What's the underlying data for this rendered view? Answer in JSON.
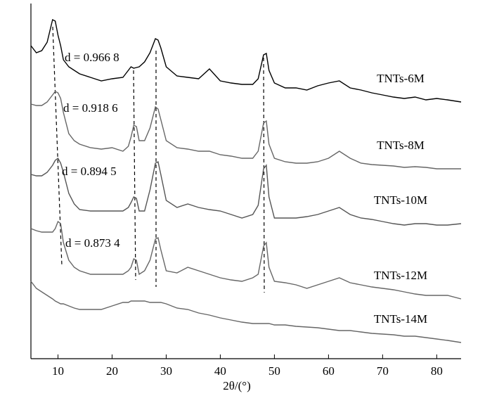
{
  "chart_data": {
    "type": "line",
    "x_label": "2θ/(°)",
    "x": [
      5,
      6,
      7,
      8,
      9,
      9.5,
      10,
      10.5,
      11,
      12,
      13,
      14,
      16,
      18,
      20,
      22,
      23,
      23.5,
      24,
      24.5,
      25,
      26,
      27,
      28,
      28.5,
      29,
      30,
      32,
      34,
      36,
      38,
      40,
      42,
      44,
      46,
      47,
      48,
      48.5,
      49,
      50,
      52,
      54,
      56,
      58,
      60,
      62,
      64,
      66,
      68,
      70,
      72,
      74,
      76,
      78,
      80,
      82,
      84.5
    ],
    "series": [
      {
        "name": "TNTs-6M",
        "color": "#000000",
        "values": [
          445,
          435,
          438,
          450,
          482,
          480,
          460,
          445,
          425,
          415,
          410,
          405,
          400,
          395,
          398,
          400,
          410,
          415,
          413,
          414,
          415,
          422,
          435,
          455,
          453,
          442,
          415,
          402,
          400,
          398,
          412,
          395,
          392,
          390,
          390,
          398,
          432,
          434,
          410,
          392,
          385,
          385,
          382,
          388,
          392,
          395,
          385,
          382,
          378,
          375,
          372,
          370,
          372,
          368,
          370,
          368,
          365
        ]
      },
      {
        "name": "TNTs-8M",
        "color": "#666666",
        "values": [
          362,
          360,
          360,
          365,
          375,
          380,
          378,
          370,
          350,
          320,
          310,
          305,
          300,
          298,
          300,
          295,
          302,
          315,
          332,
          330,
          310,
          310,
          328,
          358,
          355,
          340,
          310,
          300,
          298,
          295,
          295,
          290,
          288,
          285,
          285,
          295,
          335,
          338,
          305,
          285,
          280,
          278,
          278,
          280,
          285,
          295,
          285,
          278,
          276,
          275,
          274,
          272,
          273,
          272,
          270,
          270,
          270
        ]
      },
      {
        "name": "TNTs-10M",
        "color": "#555555",
        "values": [
          262,
          260,
          260,
          265,
          275,
          282,
          285,
          278,
          265,
          235,
          220,
          212,
          210,
          210,
          210,
          210,
          215,
          222,
          230,
          228,
          210,
          210,
          240,
          278,
          280,
          262,
          225,
          215,
          220,
          215,
          212,
          210,
          205,
          200,
          205,
          218,
          270,
          275,
          230,
          200,
          200,
          200,
          202,
          205,
          210,
          215,
          205,
          200,
          198,
          195,
          192,
          190,
          192,
          192,
          190,
          190,
          192
        ]
      },
      {
        "name": "TNTs-12M",
        "color": "#666666",
        "values": [
          185,
          182,
          180,
          180,
          180,
          185,
          195,
          192,
          165,
          140,
          130,
          125,
          120,
          120,
          120,
          120,
          125,
          130,
          142,
          140,
          120,
          125,
          140,
          170,
          172,
          155,
          125,
          122,
          130,
          125,
          120,
          115,
          112,
          110,
          115,
          120,
          160,
          165,
          130,
          110,
          108,
          105,
          100,
          105,
          110,
          115,
          108,
          105,
          102,
          100,
          98,
          95,
          92,
          90,
          90,
          90,
          85
        ]
      },
      {
        "name": "TNTs-14M",
        "color": "#666666",
        "values": [
          110,
          100,
          95,
          90,
          85,
          82,
          80,
          78,
          78,
          75,
          72,
          70,
          70,
          70,
          75,
          80,
          80,
          82,
          82,
          82,
          82,
          82,
          80,
          80,
          80,
          80,
          78,
          72,
          70,
          65,
          62,
          58,
          55,
          52,
          50,
          50,
          50,
          50,
          50,
          48,
          48,
          46,
          45,
          44,
          42,
          40,
          40,
          38,
          36,
          35,
          34,
          32,
          32,
          30,
          28,
          26,
          23
        ]
      }
    ],
    "annotations": [
      "d = 0.966 8",
      "d = 0.918 6",
      "d = 0.894 5",
      "d = 0.873 4"
    ],
    "xlim": [
      5,
      84.5
    ],
    "xticks": [
      10,
      20,
      30,
      40,
      50,
      60,
      70,
      80
    ],
    "ylim": [
      0,
      505
    ]
  }
}
